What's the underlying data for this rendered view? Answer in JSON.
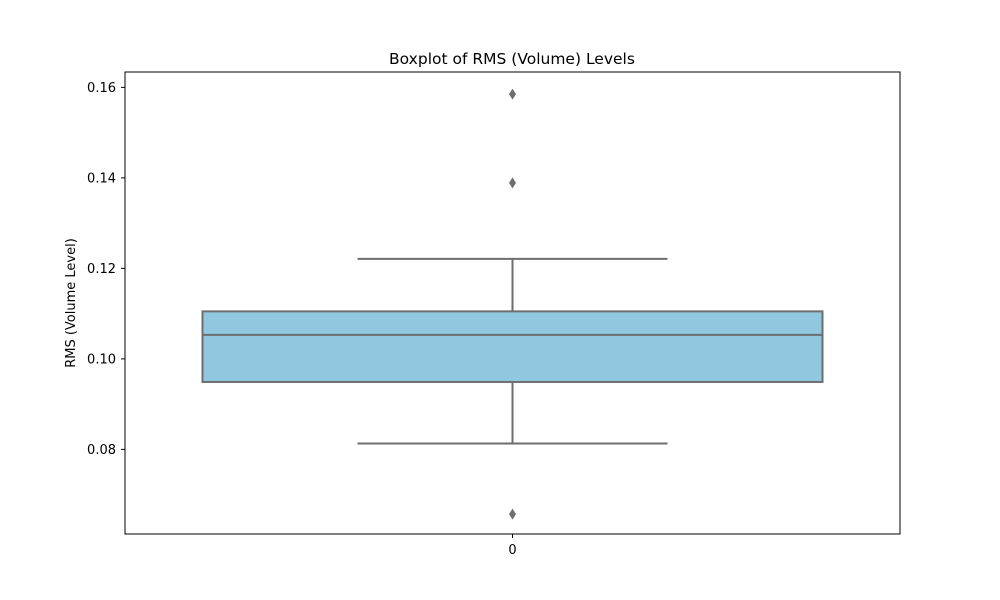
{
  "chart_data": {
    "type": "boxplot",
    "title": "Boxplot of RMS (Volume) Levels",
    "xlabel": "",
    "ylabel": "RMS (Volume Level)",
    "categories": [
      "0"
    ],
    "boxes": [
      {
        "category": "0",
        "whisker_low": 0.0813,
        "q1": 0.0949,
        "median": 0.1053,
        "q3": 0.1105,
        "whisker_high": 0.1221,
        "outliers": [
          0.1585,
          0.1389,
          0.0657
        ]
      }
    ],
    "ylim": [
      0.0613,
      0.1634
    ],
    "yticks": [
      0.08,
      0.1,
      0.12,
      0.14,
      0.16
    ],
    "ytick_labels": [
      "0.08",
      "0.10",
      "0.12",
      "0.14",
      "0.16"
    ],
    "grid": false,
    "legend": "none",
    "colors": {
      "box_fill": "#92c8df",
      "lines": "#6e6e6e",
      "outlier": "#6e6e6e",
      "frame": "#000000"
    }
  }
}
